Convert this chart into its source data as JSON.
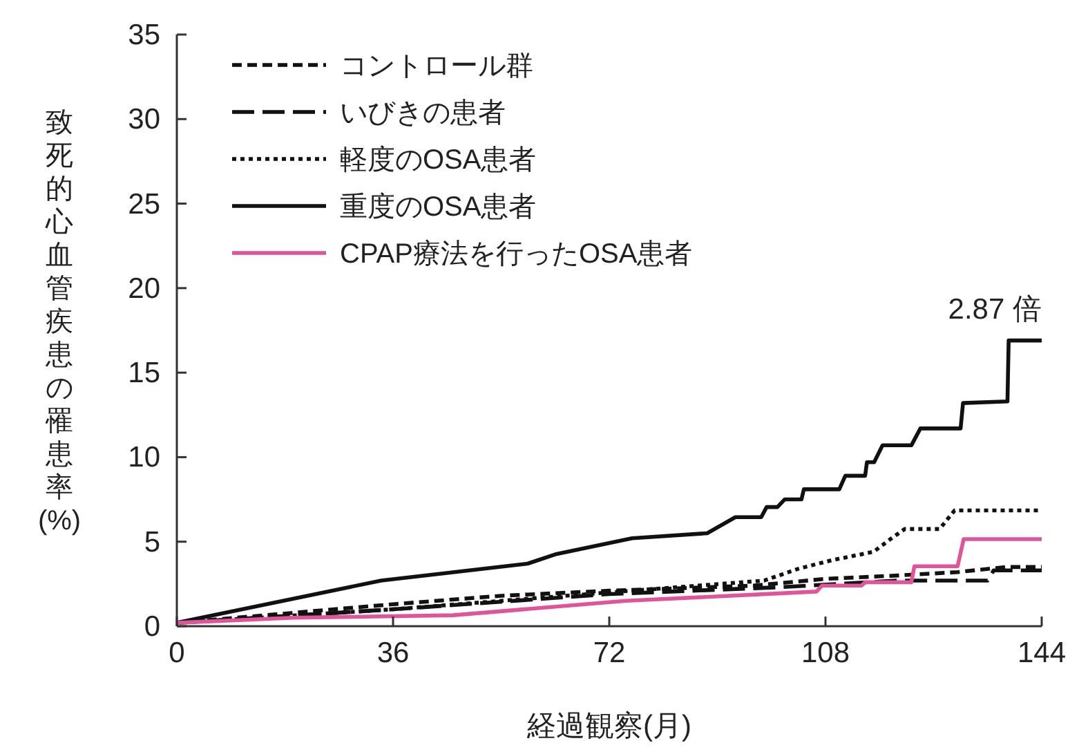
{
  "chart_data": {
    "type": "line",
    "xlabel": "経過観察(月)",
    "ylabel": "致死的心血管疾患の罹患率(%)",
    "xlim": [
      0,
      144
    ],
    "xticks": [
      0,
      36,
      72,
      108,
      144
    ],
    "ylim": [
      0,
      35
    ],
    "yticks": [
      0,
      5,
      10,
      15,
      20,
      25,
      30,
      35
    ],
    "grid": false,
    "legend": "top left",
    "marker": "none",
    "annotations": [
      {
        "text": "2.87 倍",
        "x": 144,
        "y": 16.9
      }
    ],
    "series": [
      {
        "name": "コントロール群",
        "color": "#111111",
        "line_style": "dashed",
        "x": [
          0,
          36,
          54,
          72,
          96,
          108,
          120,
          130,
          138,
          144
        ],
        "values": [
          0.2,
          1.3,
          1.8,
          2.1,
          2.4,
          2.8,
          3.0,
          3.2,
          3.5,
          3.5
        ]
      },
      {
        "name": "いびきの患者",
        "color": "#111111",
        "line_style": "longdash",
        "x": [
          0,
          36,
          72,
          100,
          120,
          135,
          136,
          144
        ],
        "values": [
          0.2,
          1.0,
          1.9,
          2.3,
          2.7,
          2.7,
          3.3,
          3.3
        ]
      },
      {
        "name": "軽度のOSA患者",
        "color": "#111111",
        "line_style": "dotted",
        "x": [
          0,
          36,
          72,
          97.8,
          103.5,
          109,
          116,
          119,
          121.2,
          127,
          129.5,
          144
        ],
        "values": [
          0.2,
          1.0,
          2.0,
          2.7,
          3.4,
          3.9,
          4.4,
          5.2,
          5.75,
          5.75,
          6.85,
          6.85
        ]
      },
      {
        "name": "重度のOSA患者",
        "color": "#111111",
        "line_style": "solid",
        "x": [
          0,
          34,
          58.4,
          63,
          75.8,
          88.3,
          93,
          97.3,
          98.2,
          100,
          101.2,
          104,
          104.4,
          110.3,
          111.3,
          114.6,
          114.9,
          116.1,
          117.5,
          122.3,
          123.8,
          130.5,
          130.9,
          138.3,
          138.5,
          144
        ],
        "values": [
          0.2,
          2.7,
          3.7,
          4.25,
          5.2,
          5.5,
          6.45,
          6.45,
          7.05,
          7.05,
          7.5,
          7.5,
          8.1,
          8.1,
          8.9,
          8.9,
          9.7,
          9.7,
          10.7,
          10.7,
          11.7,
          11.7,
          13.2,
          13.3,
          16.9,
          16.9
        ]
      },
      {
        "name": "CPAP療法を行ったOSA患者",
        "color": "#e0559a",
        "line_style": "solid",
        "x": [
          0,
          19.3,
          46,
          74.8,
          106.5,
          107.4,
          114,
          114.6,
          122.3,
          122.8,
          130,
          131,
          144
        ],
        "values": [
          0.2,
          0.5,
          0.65,
          1.5,
          2.05,
          2.4,
          2.4,
          2.6,
          2.6,
          3.55,
          3.55,
          5.15,
          5.15
        ]
      }
    ]
  }
}
